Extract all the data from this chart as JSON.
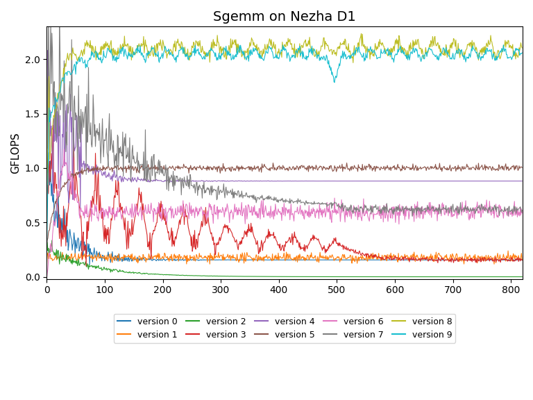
{
  "title": "Sgemm on Nezha D1",
  "ylabel": "GFLOPS",
  "xlim": [
    0,
    820
  ],
  "ylim": [
    -0.02,
    2.3
  ],
  "xticks": [
    0,
    100,
    200,
    300,
    400,
    500,
    600,
    700,
    800
  ],
  "versions": [
    {
      "label": "version 0",
      "color": "#1f77b4"
    },
    {
      "label": "version 1",
      "color": "#ff7f0e"
    },
    {
      "label": "version 2",
      "color": "#2ca02c"
    },
    {
      "label": "version 3",
      "color": "#d62728"
    },
    {
      "label": "version 4",
      "color": "#9467bd"
    },
    {
      "label": "version 5",
      "color": "#8c564b"
    },
    {
      "label": "version 6",
      "color": "#e377c2"
    },
    {
      "label": "version 7",
      "color": "#7f7f7f"
    },
    {
      "label": "version 8",
      "color": "#bcbd22"
    },
    {
      "label": "version 9",
      "color": "#17becf"
    }
  ],
  "n_points": 820,
  "figsize": [
    7.68,
    5.76
  ],
  "dpi": 100
}
